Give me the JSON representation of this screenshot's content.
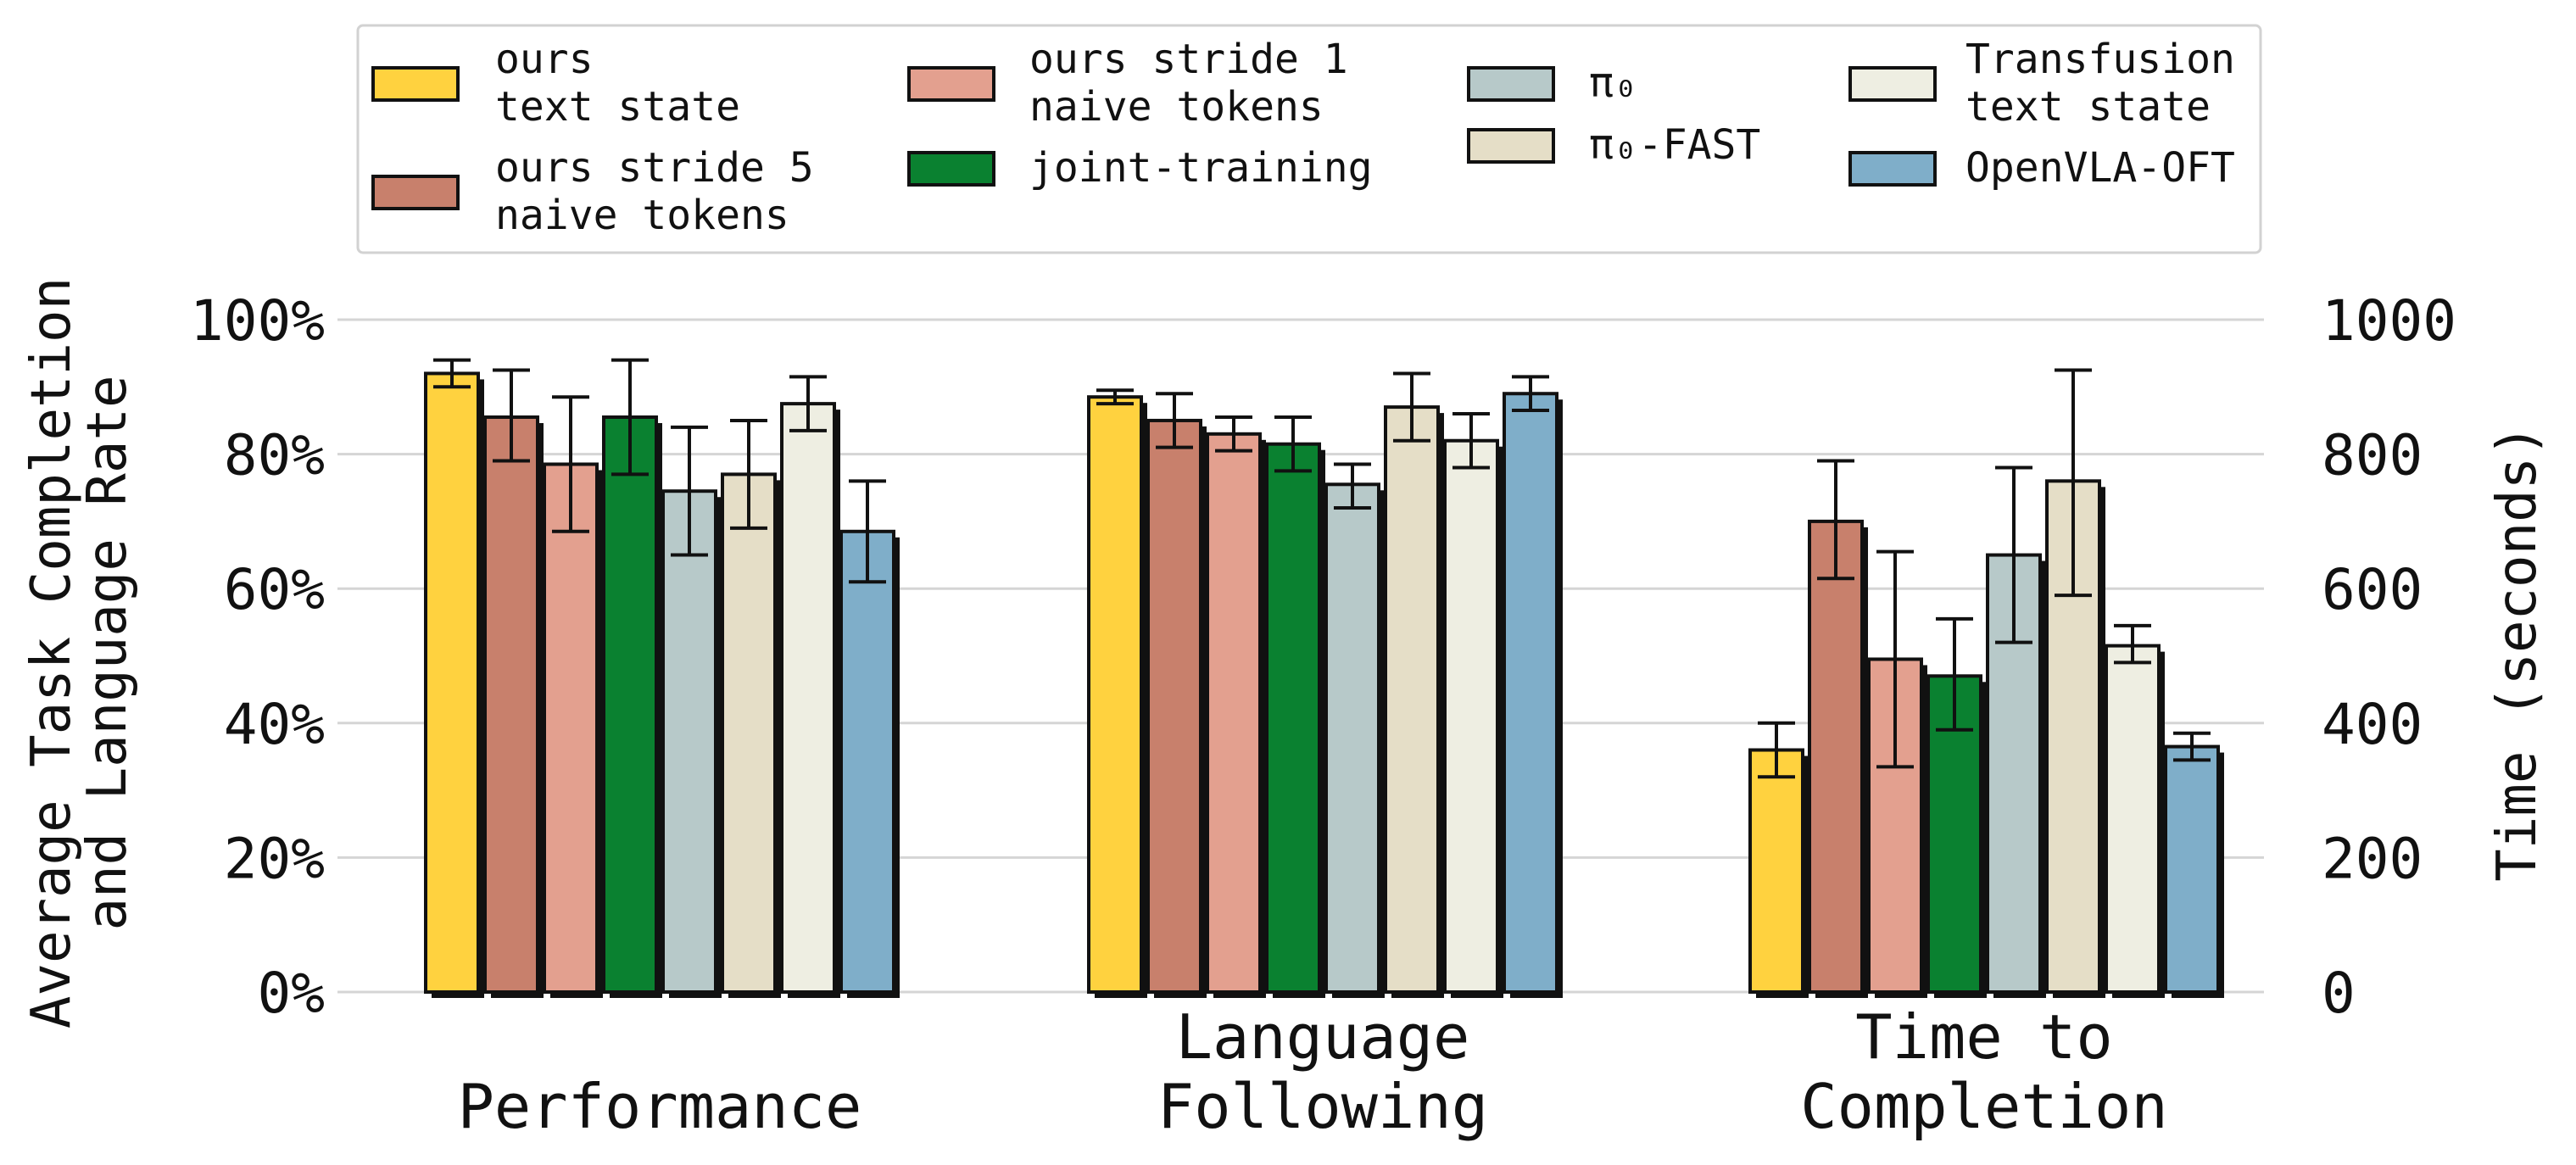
{
  "chart_data": {
    "type": "bar",
    "categories": [
      "Performance",
      "Language\nFollowing",
      "Time to\nCompletion"
    ],
    "ylabel": "Average Task Completion\nand Language Rate",
    "y2label": "Time (seconds)",
    "ylim": [
      0,
      100
    ],
    "y2lim": [
      0,
      1000
    ],
    "yticks": [
      "0%",
      "20%",
      "40%",
      "60%",
      "80%",
      "100%"
    ],
    "y2ticks": [
      "0",
      "200",
      "400",
      "600",
      "800",
      "1000"
    ],
    "grid": "horizontal",
    "legend_position": "top",
    "legend_labels": [
      "ours\ntext state",
      "ours stride 5\nnaive tokens",
      "ours stride 1\nnaive tokens",
      "joint-training",
      "π₀",
      "π₀-FAST",
      "Transfusion\ntext state",
      "OpenVLA-OFT"
    ],
    "series": [
      {
        "name": "ours text state",
        "color": "#FFD23F",
        "values": [
          92,
          88.5,
          360
        ],
        "errors": [
          [
            90,
            94
          ],
          [
            87.5,
            89.5
          ],
          [
            320,
            400
          ]
        ]
      },
      {
        "name": "ours stride 5 naive tokens",
        "color": "#C8806C",
        "values": [
          85.5,
          85,
          700
        ],
        "errors": [
          [
            79,
            92.5
          ],
          [
            81,
            89
          ],
          [
            615,
            790
          ]
        ]
      },
      {
        "name": "ours stride 1 naive tokens",
        "color": "#E3A08F",
        "values": [
          78.5,
          83,
          495
        ],
        "errors": [
          [
            68.5,
            88.5
          ],
          [
            80.5,
            85.5
          ],
          [
            335,
            655
          ]
        ]
      },
      {
        "name": "joint-training",
        "color": "#0A8130",
        "values": [
          85.5,
          81.5,
          470
        ],
        "errors": [
          [
            77,
            94
          ],
          [
            77.5,
            85.5
          ],
          [
            390,
            555
          ]
        ]
      },
      {
        "name": "π₀",
        "color": "#B7C9C9",
        "values": [
          74.5,
          75.5,
          650
        ],
        "errors": [
          [
            65,
            84
          ],
          [
            72,
            78.5
          ],
          [
            520,
            780
          ]
        ]
      },
      {
        "name": "π₀-FAST",
        "color": "#E5DEC7",
        "values": [
          77,
          87,
          760
        ],
        "errors": [
          [
            69,
            85
          ],
          [
            82,
            92
          ],
          [
            590,
            925
          ]
        ]
      },
      {
        "name": "Transfusion text state",
        "color": "#EEEEE2",
        "values": [
          87.5,
          82,
          515
        ],
        "errors": [
          [
            83.5,
            91.5
          ],
          [
            78,
            86
          ],
          [
            490,
            545
          ]
        ]
      },
      {
        "name": "OpenVLA-OFT",
        "color": "#7FAEC9",
        "values": [
          68.5,
          89,
          365
        ],
        "errors": [
          [
            61,
            76
          ],
          [
            86.5,
            91.5
          ],
          [
            345,
            385
          ]
        ]
      }
    ]
  }
}
